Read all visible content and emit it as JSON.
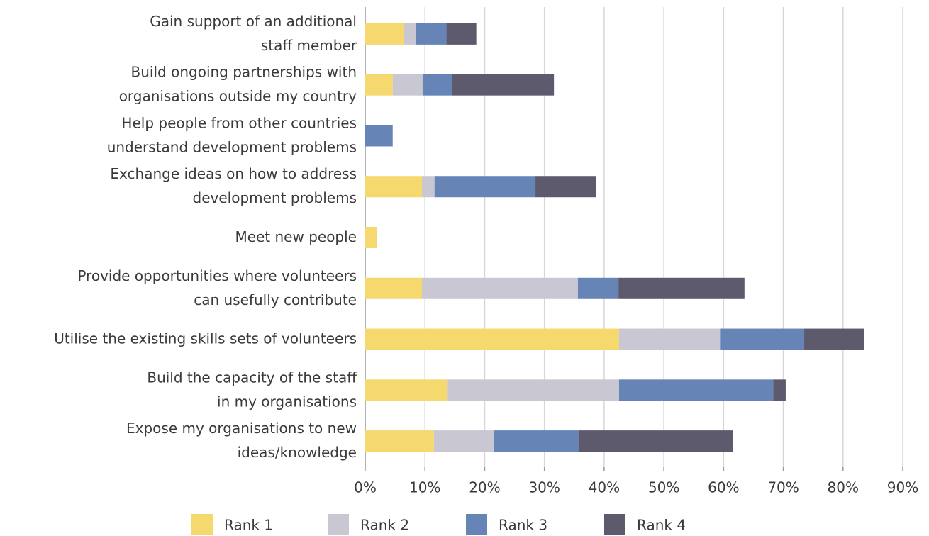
{
  "chart_data": {
    "type": "stacked_barh",
    "categories": [
      "Gain support of an additional\nstaff member",
      "Build ongoing partnerships with\norganisations outside my country",
      "Help people from other countries\nunderstand development problems",
      "Exchange ideas on how to address\ndevelopment problems",
      "Meet new people",
      "Provide opportunities where volunteers\ncan usefully contribute",
      "Utilise the existing skills sets of volunteers",
      "Build the capacity of the staff\nin my organisations",
      "Expose my organisations to new\nideas/knowledge"
    ],
    "series": [
      {
        "name": "Rank 1",
        "color": "#f5d86e",
        "values": [
          6.5,
          4.6,
          0,
          9.5,
          1.9,
          9.5,
          42.5,
          13.8,
          11.5
        ]
      },
      {
        "name": "Rank 2",
        "color": "#c9c8d2",
        "values": [
          2,
          5,
          0,
          2.1,
          0,
          26.1,
          16.9,
          28.7,
          10.1
        ]
      },
      {
        "name": "Rank 3",
        "color": "#6685b6",
        "values": [
          5.1,
          5,
          4.6,
          16.9,
          0,
          6.8,
          14.1,
          25.8,
          14.1
        ]
      },
      {
        "name": "Rank 4",
        "color": "#5e5a6e",
        "values": [
          5,
          17,
          0,
          10.1,
          0,
          21.1,
          10,
          2.1,
          25.9
        ]
      }
    ],
    "xlim": [
      0,
      90
    ],
    "xticks": [
      {
        "value": 0,
        "label": "0%"
      },
      {
        "value": 10,
        "label": "10%"
      },
      {
        "value": 20,
        "label": "20%"
      },
      {
        "value": 30,
        "label": "30%"
      },
      {
        "value": 40,
        "label": "40%"
      },
      {
        "value": 50,
        "label": "50%"
      },
      {
        "value": 60,
        "label": "60%"
      },
      {
        "value": 70,
        "label": "70%"
      },
      {
        "value": 80,
        "label": "80%"
      },
      {
        "value": 90,
        "label": "90%"
      }
    ],
    "grid": true,
    "legend": "bottom"
  }
}
